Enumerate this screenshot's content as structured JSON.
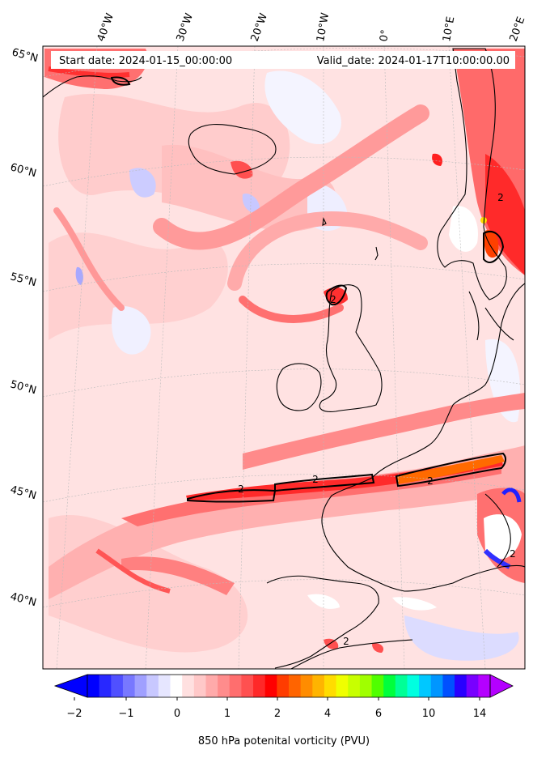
{
  "header": {
    "start_date": "Start date: 2024-01-15_00:00:00",
    "valid_date": "Valid_date: 2024-01-17T10:00:00.00"
  },
  "map": {
    "projection_graticule": "lat-lon",
    "lon_labels": [
      "40°W",
      "30°W",
      "20°W",
      "10°W",
      "0°",
      "10°E",
      "20°E"
    ],
    "lat_labels": [
      "65°N",
      "60°N",
      "55°N",
      "50°N",
      "45°N",
      "40°N"
    ],
    "contour_labels": [
      "2",
      "2",
      "2",
      "2",
      "2",
      "2",
      "2"
    ],
    "colors": {
      "background_pv": "#ffd6d6",
      "mid_pv": "#ff9a9a",
      "high_pv": "#ff3a3a",
      "very_high_pv": "#ff2000",
      "orange_pv": "#ff7a00",
      "negative_pv": "#c8c8ff",
      "coastline": "#000000"
    }
  },
  "colorbar": {
    "tick_labels": [
      "−2",
      "−1",
      "0",
      "1",
      "2",
      "4",
      "6",
      "10",
      "14"
    ],
    "label": "850 hPa potenital vorticity (PVU)",
    "colors": [
      "#0000ff",
      "#2828ff",
      "#5050ff",
      "#7878ff",
      "#a0a0ff",
      "#c8c8ff",
      "#e6e6ff",
      "#ffffff",
      "#ffe0e0",
      "#ffc8c8",
      "#ffaaaa",
      "#ff8c8c",
      "#ff6e6e",
      "#ff5050",
      "#ff2828",
      "#ff0000",
      "#ff3c00",
      "#ff6400",
      "#ff8c00",
      "#ffb400",
      "#ffdc00",
      "#f0ff00",
      "#c8ff00",
      "#a0ff00",
      "#50ff00",
      "#00ff3c",
      "#00ff96",
      "#00ffe0",
      "#00c8ff",
      "#0096ff",
      "#0050ff",
      "#2800ff",
      "#7800ff",
      "#b400ff"
    ]
  }
}
